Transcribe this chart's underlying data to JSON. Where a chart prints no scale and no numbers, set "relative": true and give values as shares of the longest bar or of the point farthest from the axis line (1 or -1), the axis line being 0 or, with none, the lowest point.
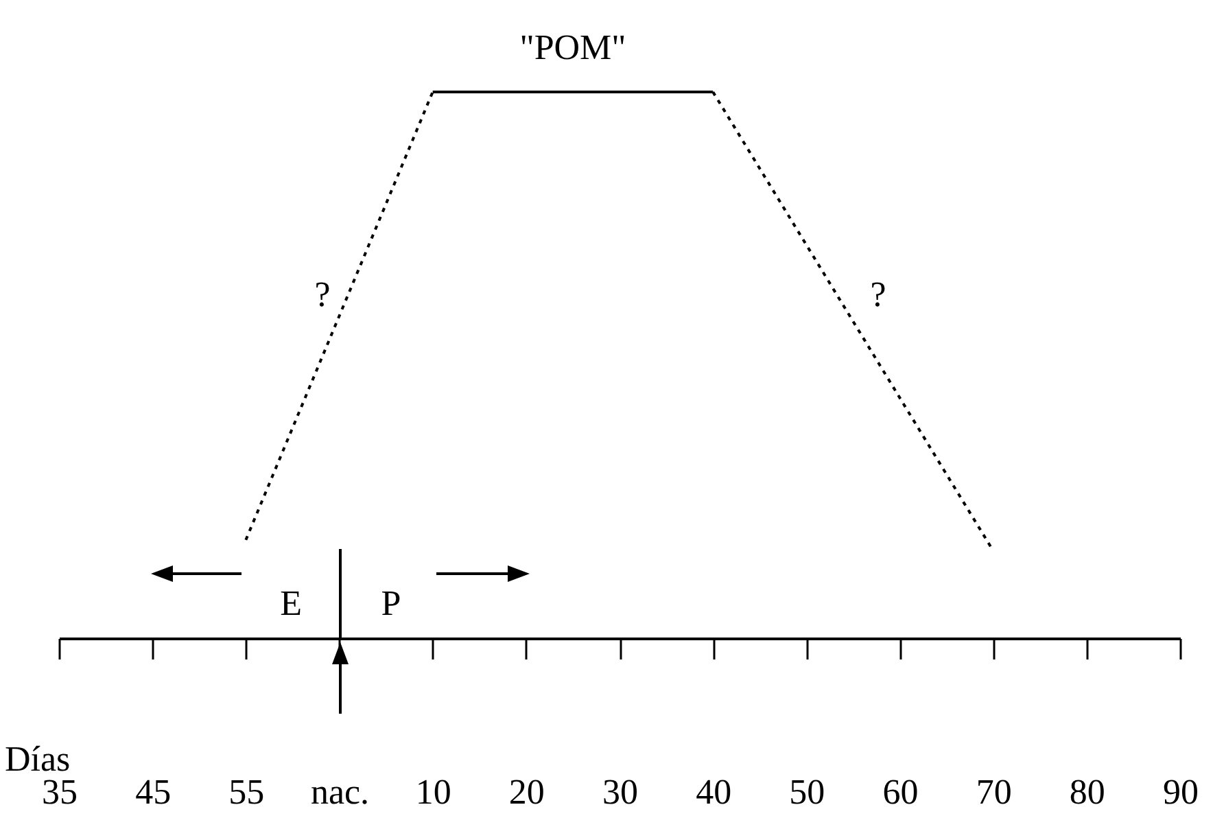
{
  "chart_data": {
    "type": "line",
    "title": "\"POM\"",
    "xlabel": "Días",
    "relative": true,
    "categories": [
      "35",
      "45",
      "55",
      "nac.",
      "10",
      "20",
      "30",
      "40",
      "50",
      "60",
      "70",
      "80",
      "90"
    ],
    "series": [
      {
        "color": "#000000",
        "line_style": "dotted",
        "values": [
          null,
          null,
          0.18,
          null,
          1,
          null,
          null,
          null,
          null,
          null,
          null,
          null,
          null
        ]
      },
      {
        "color": "#000000",
        "line_style": "solid",
        "values": [
          null,
          null,
          null,
          null,
          1,
          1,
          1,
          1,
          null,
          null,
          null,
          null,
          null
        ]
      },
      {
        "color": "#000000",
        "line_style": "dotted",
        "values": [
          null,
          null,
          null,
          null,
          null,
          null,
          null,
          1,
          null,
          null,
          0.16,
          null,
          null
        ]
      }
    ],
    "annotations": [
      "?",
      "?",
      "E",
      "P"
    ],
    "grid": false
  }
}
